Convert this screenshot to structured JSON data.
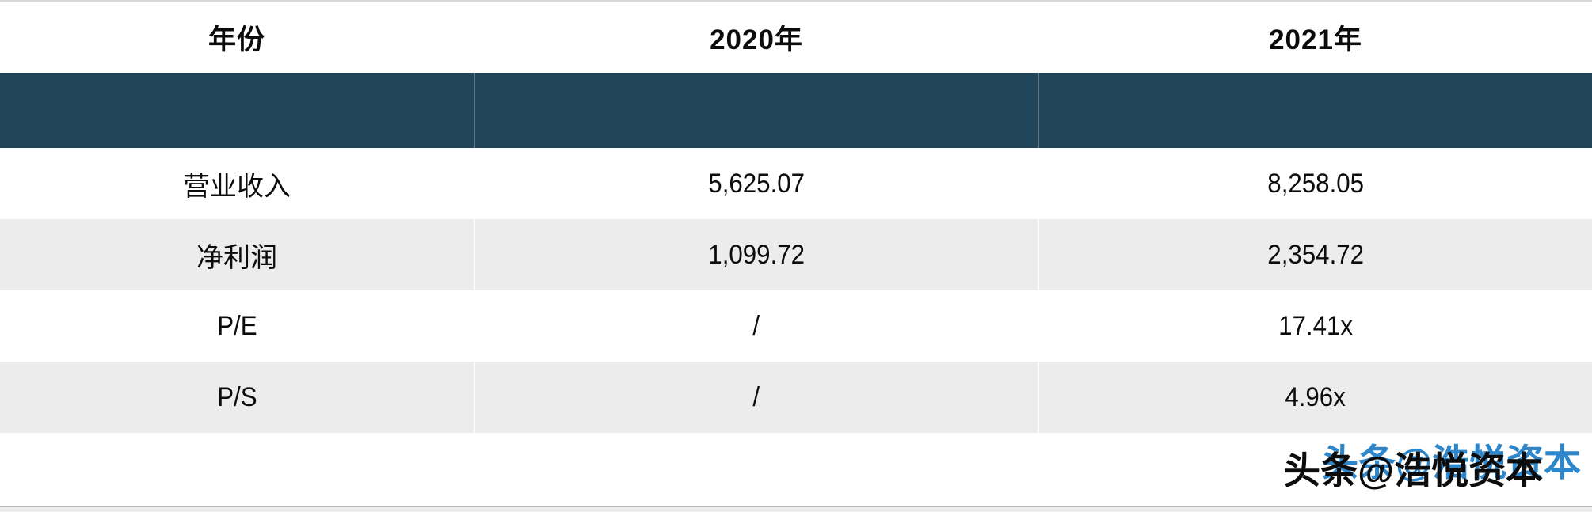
{
  "chart_data": {
    "type": "table",
    "columns": [
      "年份",
      "2020年",
      "2021年"
    ],
    "rows": [
      [
        "营业收入",
        "5,625.07",
        "8,258.05"
      ],
      [
        "净利润",
        "1,099.72",
        "2,354.72"
      ],
      [
        "P/E",
        "/",
        "17.41x"
      ],
      [
        "P/S",
        "/",
        "4.96x"
      ]
    ]
  },
  "table": {
    "columns": [
      {
        "label": "年份"
      },
      {
        "label": "2020年"
      },
      {
        "label": "2021年"
      }
    ],
    "rows": [
      {
        "label": "营业收入",
        "values": [
          "5,625.07",
          "8,258.05"
        ],
        "shaded": false
      },
      {
        "label": "净利润",
        "values": [
          "1,099.72",
          "2,354.72"
        ],
        "shaded": true
      },
      {
        "label": "P/E",
        "values": [
          "/",
          "17.41x"
        ],
        "shaded": false
      },
      {
        "label": "P/S",
        "values": [
          "/",
          "4.96x"
        ],
        "shaded": true
      }
    ]
  },
  "watermark": {
    "text": "头条@浩悦资本"
  },
  "colors": {
    "banner": "#20455b",
    "shaded_row": "#ececec",
    "watermark_blue": "#2e86cb",
    "watermark_black": "#0c0c0c",
    "text": "#0c0c0c",
    "top_border": "#d8d8d8",
    "bottom_strip": "#ededed"
  }
}
